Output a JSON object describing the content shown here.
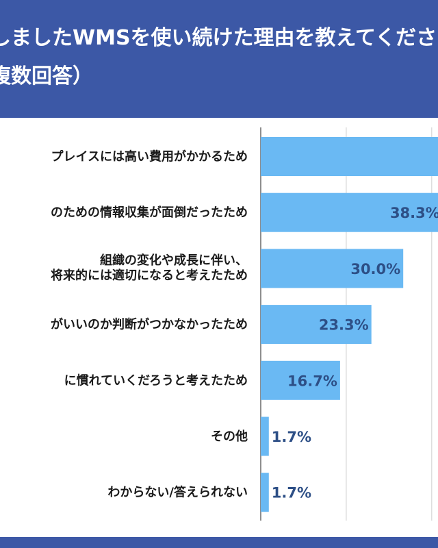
{
  "header": {
    "title_line1": "しましたWMSを使い続けた理由を教えてくださ",
    "title_line2": "複数回答）"
  },
  "colors": {
    "header_bg": "#3c58a6",
    "bar": "#6ab9f3",
    "value_text": "#2d4f86",
    "label_text": "#1a1a1a",
    "grid": "#cccccc"
  },
  "chart_data": {
    "type": "bar",
    "orientation": "horizontal",
    "title": "",
    "xlabel": "",
    "ylabel": "",
    "xlim": [
      0,
      45
    ],
    "grid": true,
    "categories": [
      [
        "プレイスには高い費用がかかるため"
      ],
      [
        "のための情報収集が面倒だったため"
      ],
      [
        "組織の変化や成長に伴い、",
        "将来的には適切になると考えたため"
      ],
      [
        "がいいのか判断がつかなかったため"
      ],
      [
        "に慣れていくだろうと考えたため"
      ],
      [
        "その他"
      ],
      [
        "わからない/答えられない"
      ]
    ],
    "values": [
      null,
      38.3,
      30.0,
      23.3,
      16.7,
      1.7,
      1.7
    ],
    "value_labels": [
      "",
      "38.3%",
      "30.0%",
      "23.3%",
      "16.7%",
      "1.7%",
      "1.7%"
    ]
  }
}
